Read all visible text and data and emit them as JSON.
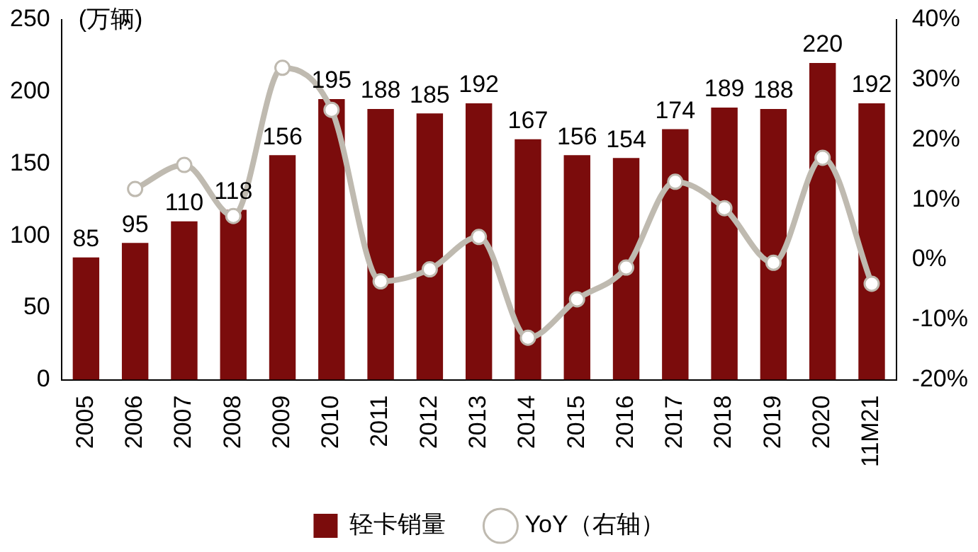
{
  "chart_data": {
    "type": "bar",
    "ylabel": "(万辆)",
    "categories": [
      "2005",
      "2006",
      "2007",
      "2008",
      "2009",
      "2010",
      "2011",
      "2012",
      "2013",
      "2014",
      "2015",
      "2016",
      "2017",
      "2018",
      "2019",
      "2020",
      "11M21"
    ],
    "series": [
      {
        "name": "轻卡销量",
        "color": "#7b0c0c",
        "values": [
          85,
          95,
          110,
          118,
          156,
          195,
          188,
          185,
          192,
          167,
          156,
          154,
          174,
          189,
          188,
          220,
          192
        ],
        "value_labels": [
          "85",
          "95",
          "110",
          "118",
          "156",
          "195",
          "188",
          "185",
          "192",
          "167",
          "156",
          "154",
          "174",
          "189",
          "188",
          "220",
          "192"
        ]
      },
      {
        "name": "YoY（右轴）",
        "type": "line",
        "axis": "y2",
        "color": "#bfbab0",
        "values": [
          null,
          11.8,
          15.8,
          7.3,
          32,
          25,
          -3.6,
          -1.6,
          3.8,
          -13,
          -6.6,
          -1.3,
          13,
          8.6,
          -0.5,
          17,
          -4
        ]
      }
    ],
    "ylim": [
      0,
      250
    ],
    "yticks": [
      0,
      50,
      100,
      150,
      200,
      250
    ],
    "y2lim": [
      -20,
      40
    ],
    "y2ticks": [
      {
        "value": -20,
        "label": "-20%"
      },
      {
        "value": -10,
        "label": "-10%"
      },
      {
        "value": 0,
        "label": "0%"
      },
      {
        "value": 10,
        "label": "10%"
      },
      {
        "value": 20,
        "label": "20%"
      },
      {
        "value": 30,
        "label": "30%"
      },
      {
        "value": 40,
        "label": "40%"
      }
    ],
    "grid": false,
    "legend": "bottom",
    "marker": "circle",
    "line_style": "solid"
  }
}
